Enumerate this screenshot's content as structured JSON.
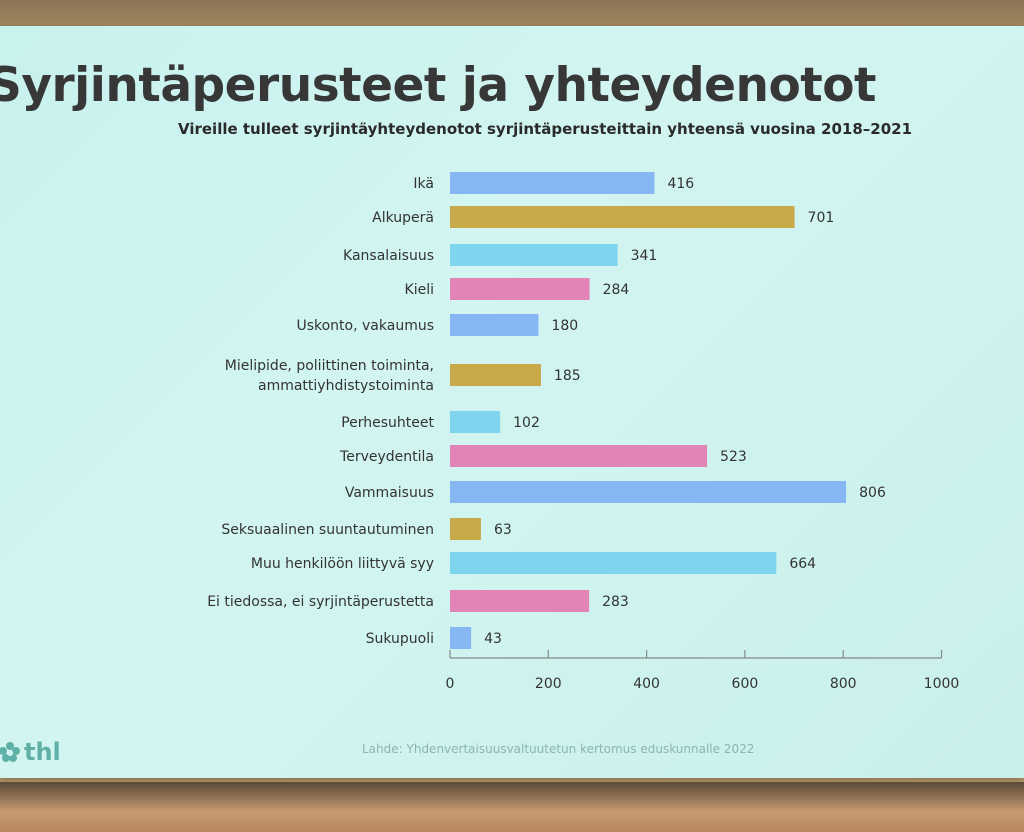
{
  "slide": {
    "title": "Syrjintäperusteet ja yhteydenotot",
    "source": "Lahde: Yhdenvertaisuusvaltuutetun kertomus eduskunnalle 2022",
    "logo_text": "thl"
  },
  "colors": {
    "blue": "#87b7f3",
    "gold": "#c9a94a",
    "cyan": "#7fd4ee",
    "pink": "#e384b6",
    "accent_logo": "#5fb1a7",
    "title_text": "#373737"
  },
  "chart_data": {
    "type": "bar",
    "orientation": "horizontal",
    "title": "Vireille tulleet syrjintäyhteydenotot syrjintäperusteittain yhteensä vuosina 2018–2021",
    "categories": [
      "Ikä",
      "Alkuperä",
      "Kansalaisuus",
      "Kieli",
      "Uskonto, vakaumus",
      "Mielipide, poliittinen toiminta, ammattiyhdistystoiminta",
      "Perhesuhteet",
      "Terveydentila",
      "Vammaisuus",
      "Seksuaalinen suuntautuminen",
      "Muu henkilöön liittyvä syy",
      "Ei tiedossa, ei syrjintäperustetta",
      "Sukupuoli"
    ],
    "category_lines": [
      [
        "Ikä"
      ],
      [
        "Alkuperä"
      ],
      [
        "Kansalaisuus"
      ],
      [
        "Kieli"
      ],
      [
        "Uskonto, vakaumus"
      ],
      [
        "Mielipide, poliittinen toiminta,",
        "ammattiyhdistystoiminta"
      ],
      [
        "Perhesuhteet"
      ],
      [
        "Terveydentila"
      ],
      [
        "Vammaisuus"
      ],
      [
        "Seksuaalinen suuntautuminen"
      ],
      [
        "Muu henkilöön liittyvä syy"
      ],
      [
        "Ei tiedossa, ei syrjintäperustetta"
      ],
      [
        "Sukupuoli"
      ]
    ],
    "values": [
      416,
      701,
      341,
      284,
      180,
      185,
      102,
      523,
      806,
      63,
      664,
      283,
      43
    ],
    "bar_colors": [
      "blue",
      "gold",
      "cyan",
      "pink",
      "blue",
      "gold",
      "cyan",
      "pink",
      "blue",
      "gold",
      "cyan",
      "pink",
      "blue"
    ],
    "xlim": [
      0,
      1000
    ],
    "xticks": [
      0,
      200,
      400,
      600,
      800,
      1000
    ],
    "xlabel": "",
    "ylabel": "",
    "grid": false,
    "legend": "none"
  }
}
